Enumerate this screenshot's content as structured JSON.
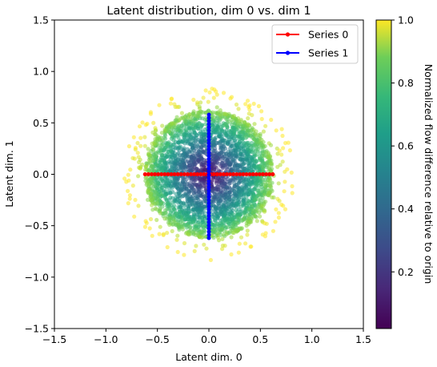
{
  "chart_data": {
    "type": "scatter",
    "title": "Latent distribution, dim 0 vs. dim 1",
    "xlabel": "Latent dim. 0",
    "ylabel": "Latent dim. 1",
    "xlim": [
      -1.5,
      1.5
    ],
    "ylim": [
      -1.5,
      1.5
    ],
    "xticks": [
      -1.5,
      -1.0,
      -0.5,
      0.0,
      0.5,
      1.0,
      1.5
    ],
    "yticks": [
      -1.5,
      -1.0,
      -0.5,
      0.0,
      0.5,
      1.0,
      1.5
    ],
    "xtick_labels": [
      "−1.5",
      "−1.0",
      "−0.5",
      "0.0",
      "0.5",
      "1.0",
      "1.5"
    ],
    "ytick_labels": [
      "−1.5",
      "−1.0",
      "−0.5",
      "0.0",
      "0.5",
      "1.0",
      "1.5"
    ],
    "grid": false,
    "legend_position": "top-right",
    "scatter": {
      "description_color_by": "radial distance from origin (normalized)",
      "approx_radius": 0.62,
      "colormap": "viridis"
    },
    "series": [
      {
        "name": "Series 0",
        "color": "#ff0000",
        "x_start": -0.62,
        "x_end": 0.62,
        "y": 0.0,
        "points": 40
      },
      {
        "name": "Series 1",
        "color": "#0000ff",
        "x": 0.0,
        "y_start": -0.62,
        "y_end": 0.58,
        "points": 40
      }
    ],
    "colorbar": {
      "label": "Normalized flow difference relative to origin",
      "range": [
        0.02,
        1.0
      ],
      "ticks": [
        0.2,
        0.4,
        0.6,
        0.8,
        1.0
      ],
      "tick_labels": [
        "0.2",
        "0.4",
        "0.6",
        "0.8",
        "1.0"
      ],
      "colormap": "viridis"
    }
  }
}
